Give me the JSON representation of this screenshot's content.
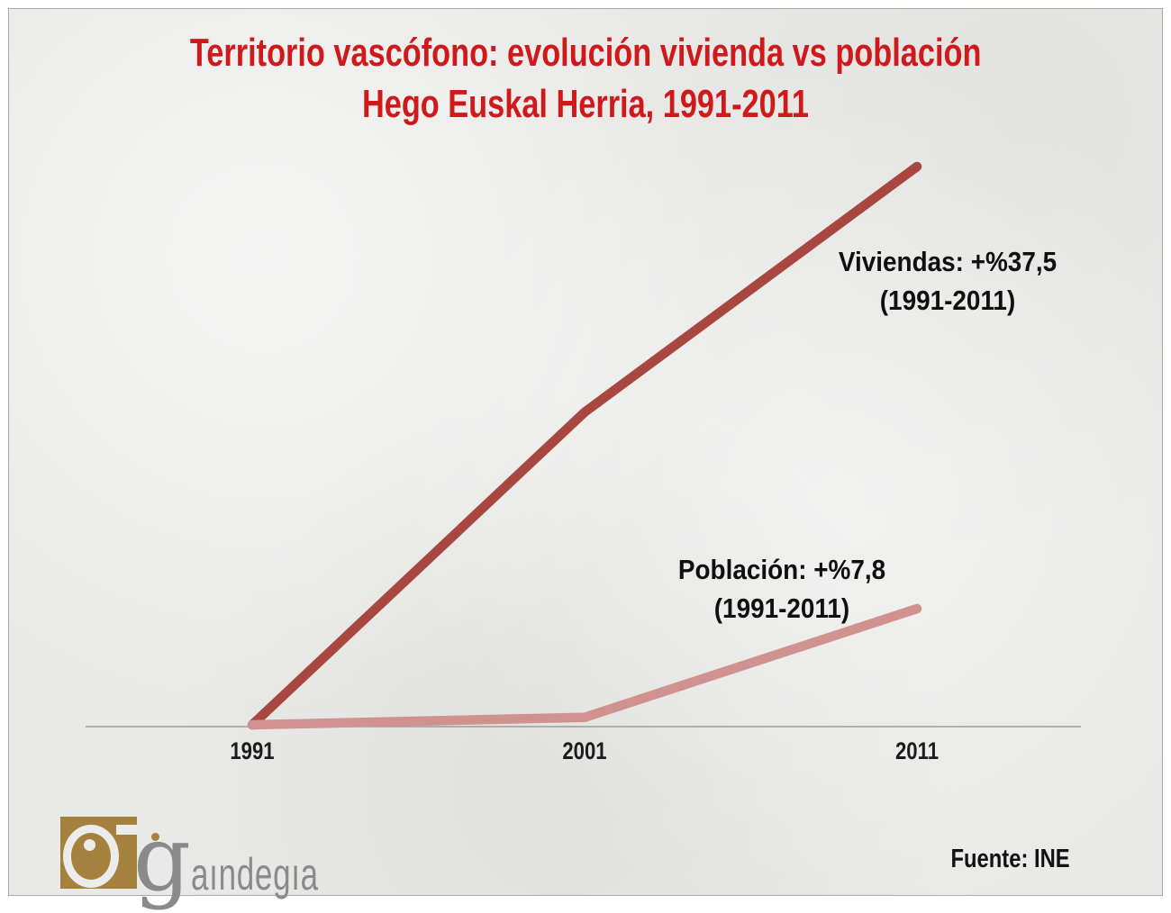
{
  "window": {
    "canvas_background": "#e9e9e7",
    "frame_border_color": "#a9a9a9"
  },
  "title": {
    "line1": "Territorio vascófono: evolución vivienda vs población",
    "line2": "Hego Euskal Herria, 1991-2011",
    "color": "#d0191b"
  },
  "chart_data": {
    "type": "line",
    "x": [
      1991,
      2001,
      2011
    ],
    "categories": [
      "1991",
      "2001",
      "2011"
    ],
    "series": [
      {
        "name": "Viviendas",
        "values": [
          0,
          21,
          37.5
        ],
        "color": "#a84640",
        "annotation": {
          "line1": "Viviendas: +%37,5",
          "line2": "(1991-2011)"
        }
      },
      {
        "name": "Población",
        "values": [
          0,
          0.5,
          7.8
        ],
        "color": "#d0928e",
        "annotation": {
          "line1": "Población: +%7,8",
          "line2": "(1991-2011)"
        }
      }
    ],
    "xlabel": "",
    "ylabel": "",
    "ylim": [
      0,
      37.5
    ],
    "grid": false,
    "legend_position": "none",
    "axis_color": "#9b9b9b",
    "tick_color": "#1c1c1c"
  },
  "footer": {
    "logo": {
      "initial": "g",
      "rest": "aındegıa",
      "gold": "#a5813e",
      "gray": "#8a8a8a"
    },
    "source": "Fuente: INE"
  }
}
